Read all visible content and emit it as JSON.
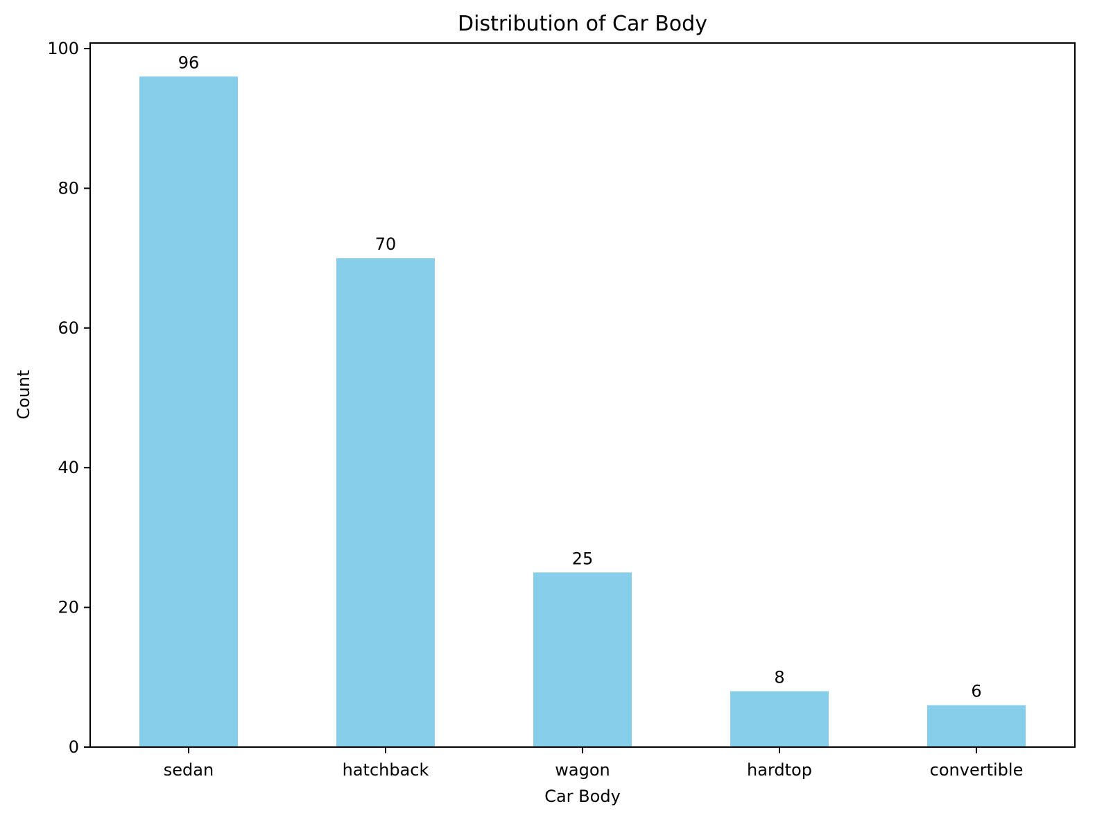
{
  "chart_data": {
    "type": "bar",
    "title": "Distribution of Car Body",
    "xlabel": "Car Body",
    "ylabel": "Count",
    "categories": [
      "sedan",
      "hatchback",
      "wagon",
      "hardtop",
      "convertible"
    ],
    "values": [
      96,
      70,
      25,
      8,
      6
    ],
    "value_labels": [
      "96",
      "70",
      "25",
      "8",
      "6"
    ],
    "yticks": [
      0,
      20,
      40,
      60,
      80,
      100
    ],
    "ytick_labels": [
      "0",
      "20",
      "40",
      "60",
      "80",
      "100"
    ],
    "ylim": [
      0,
      100.8
    ],
    "grid": false,
    "legend": "none",
    "bar_color": "#87ceeb",
    "axis_color": "#000000"
  }
}
